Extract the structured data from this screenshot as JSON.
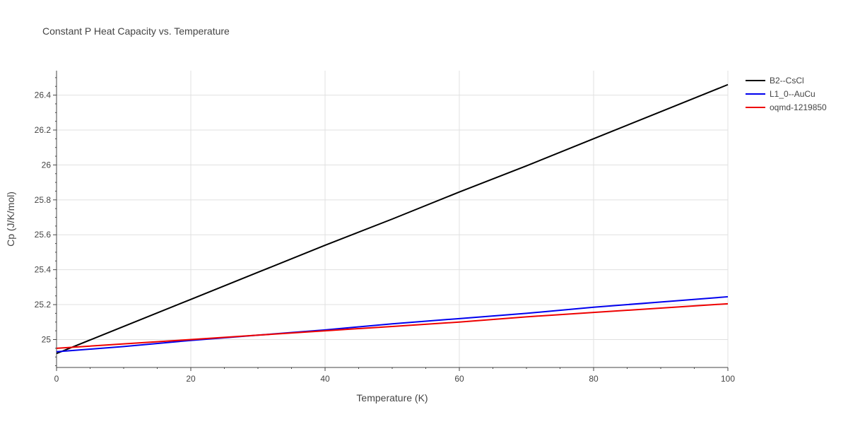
{
  "chart_data": {
    "type": "line",
    "title": "Constant P Heat Capacity vs. Temperature",
    "xlabel": "Temperature (K)",
    "ylabel": "Cp (J/K/mol)",
    "xlim": [
      0,
      100
    ],
    "ylim": [
      24.84,
      26.54
    ],
    "x_ticks": [
      0,
      20,
      40,
      60,
      80,
      100
    ],
    "x_tick_labels": [
      "0",
      "20",
      "40",
      "60",
      "80",
      "100"
    ],
    "y_ticks": [
      25,
      25.2,
      25.4,
      25.6,
      25.8,
      26,
      26.2,
      26.4
    ],
    "y_tick_labels": [
      "25",
      "25.2",
      "25.4",
      "25.6",
      "25.8",
      "26",
      "26.2",
      "26.4"
    ],
    "grid": true,
    "legend_position": "top-right, outside plot",
    "series": [
      {
        "name": "B2--CsCl",
        "color": "#000000",
        "x": [
          0,
          10,
          20,
          30,
          40,
          50,
          60,
          70,
          80,
          90,
          100
        ],
        "y": [
          24.92,
          25.075,
          25.23,
          25.385,
          25.54,
          25.69,
          25.845,
          25.995,
          26.15,
          26.305,
          26.46
        ]
      },
      {
        "name": "L1_0--AuCu",
        "color": "#0000ee",
        "x": [
          0,
          10,
          20,
          30,
          40,
          50,
          60,
          70,
          80,
          90,
          100
        ],
        "y": [
          24.93,
          24.96,
          24.995,
          25.025,
          25.055,
          25.09,
          25.12,
          25.15,
          25.185,
          25.215,
          25.245
        ]
      },
      {
        "name": "oqmd-1219850",
        "color": "#ee0000",
        "x": [
          0,
          10,
          20,
          30,
          40,
          50,
          60,
          70,
          80,
          90,
          100
        ],
        "y": [
          24.95,
          24.975,
          25.0,
          25.025,
          25.05,
          25.075,
          25.1,
          25.13,
          25.155,
          25.18,
          25.205
        ]
      }
    ]
  }
}
